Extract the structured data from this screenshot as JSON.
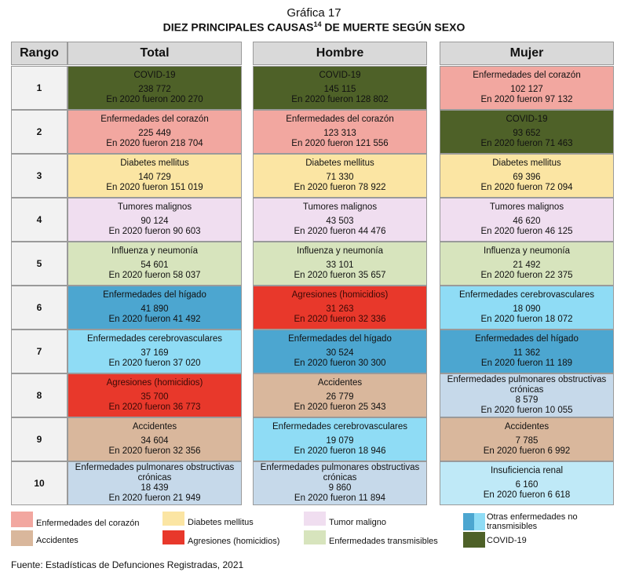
{
  "title": "Gráfica 17",
  "subtitle": "DIEZ PRINCIPALES CAUSAS",
  "subtitle_note": "14",
  "subtitle_rest": " DE MUERTE SEGÚN SEXO",
  "headers": {
    "rank": "Rango",
    "total": "Total",
    "male": "Hombre",
    "female": "Mujer"
  },
  "colors": {
    "covid": "#4e6128",
    "heart": "#f2a7a0",
    "diabetes": "#fbe5a3",
    "tumor": "#f0def0",
    "influenza": "#d7e4bd",
    "liver": "#4ca6d0",
    "cerebro": "#8fdcf5",
    "homicide": "#e8382b",
    "accident": "#d9b79c",
    "pulmonary": "#c6d9ea",
    "renal": "#bfe9f7"
  },
  "chart_data": {
    "type": "table",
    "title": "Gráfica 17",
    "subtitle": "DIEZ PRINCIPALES CAUSAS DE MUERTE SEGÚN SEXO",
    "columns": [
      "Rango",
      "Total",
      "Hombre",
      "Mujer"
    ],
    "rows": [
      {
        "rank": "1",
        "total": {
          "cause": "COVID-19",
          "value": "238 772",
          "prev": "En 2020 fueron 200 270",
          "cat": "covid"
        },
        "male": {
          "cause": "COVID-19",
          "value": "145 115",
          "prev": "En 2020 fueron 128 802",
          "cat": "covid"
        },
        "female": {
          "cause": "Enfermedades del corazón",
          "value": "102 127",
          "prev": "En 2020 fueron 97 132",
          "cat": "heart"
        }
      },
      {
        "rank": "2",
        "total": {
          "cause": "Enfermedades del corazón",
          "value": "225 449",
          "prev": "En 2020 fueron 218 704",
          "cat": "heart"
        },
        "male": {
          "cause": "Enfermedades del corazón",
          "value": "123 313",
          "prev": "En 2020 fueron 121 556",
          "cat": "heart"
        },
        "female": {
          "cause": "COVID-19",
          "value": "93 652",
          "prev": "En 2020 fueron 71 463",
          "cat": "covid"
        }
      },
      {
        "rank": "3",
        "total": {
          "cause": "Diabetes mellitus",
          "value": "140 729",
          "prev": "En 2020 fueron 151 019",
          "cat": "diabetes"
        },
        "male": {
          "cause": "Diabetes mellitus",
          "value": "71 330",
          "prev": "En 2020 fueron 78 922",
          "cat": "diabetes"
        },
        "female": {
          "cause": "Diabetes mellitus",
          "value": "69 396",
          "prev": "En 2020 fueron 72 094",
          "cat": "diabetes"
        }
      },
      {
        "rank": "4",
        "total": {
          "cause": "Tumores malignos",
          "value": "90 124",
          "prev": "En 2020 fueron 90 603",
          "cat": "tumor"
        },
        "male": {
          "cause": "Tumores malignos",
          "value": "43 503",
          "prev": "En 2020 fueron 44 476",
          "cat": "tumor"
        },
        "female": {
          "cause": "Tumores malignos",
          "value": "46 620",
          "prev": "En 2020 fueron 46 125",
          "cat": "tumor"
        }
      },
      {
        "rank": "5",
        "total": {
          "cause": "Influenza y neumonía",
          "value": "54 601",
          "prev": "En 2020 fueron 58 037",
          "cat": "influenza"
        },
        "male": {
          "cause": "Influenza y neumonía",
          "value": "33 101",
          "prev": "En 2020 fueron 35 657",
          "cat": "influenza"
        },
        "female": {
          "cause": "Influenza y neumonía",
          "value": "21 492",
          "prev": "En 2020 fueron 22 375",
          "cat": "influenza"
        }
      },
      {
        "rank": "6",
        "total": {
          "cause": "Enfermedades del hígado",
          "value": "41 890",
          "prev": "En 2020 fueron 41 492",
          "cat": "liver"
        },
        "male": {
          "cause": "Agresiones (homicidios)",
          "value": "31 263",
          "prev": "En 2020 fueron 32 336",
          "cat": "homicide"
        },
        "female": {
          "cause": "Enfermedades cerebrovasculares",
          "value": "18 090",
          "prev": "En 2020 fueron 18 072",
          "cat": "cerebro"
        }
      },
      {
        "rank": "7",
        "total": {
          "cause": "Enfermedades cerebrovasculares",
          "value": "37 169",
          "prev": "En 2020 fueron 37 020",
          "cat": "cerebro"
        },
        "male": {
          "cause": "Enfermedades del hígado",
          "value": "30 524",
          "prev": "En 2020 fueron 30 300",
          "cat": "liver"
        },
        "female": {
          "cause": "Enfermedades del hígado",
          "value": "11 362",
          "prev": "En 2020 fueron 11 189",
          "cat": "liver"
        }
      },
      {
        "rank": "8",
        "total": {
          "cause": "Agresiones (homicidios)",
          "value": "35 700",
          "prev": "En 2020 fueron 36 773",
          "cat": "homicide"
        },
        "male": {
          "cause": "Accidentes",
          "value": "26 779",
          "prev": "En 2020 fueron 25 343",
          "cat": "accident"
        },
        "female": {
          "cause": "Enfermedades pulmonares obstructivas crónicas",
          "value": "8 579",
          "prev": "En 2020 fueron 10 055",
          "cat": "pulmonary"
        }
      },
      {
        "rank": "9",
        "total": {
          "cause": "Accidentes",
          "value": "34 604",
          "prev": "En 2020 fueron 32 356",
          "cat": "accident"
        },
        "male": {
          "cause": "Enfermedades cerebrovasculares",
          "value": "19 079",
          "prev": "En 2020 fueron 18 946",
          "cat": "cerebro"
        },
        "female": {
          "cause": "Accidentes",
          "value": "7 785",
          "prev": "En 2020 fueron 6 992",
          "cat": "accident"
        }
      },
      {
        "rank": "10",
        "total": {
          "cause": "Enfermedades pulmonares obstructivas crónicas",
          "value": "18 439",
          "prev": "En 2020 fueron 21 949",
          "cat": "pulmonary"
        },
        "male": {
          "cause": "Enfermedades pulmonares obstructivas crónicas",
          "value": "9 860",
          "prev": "En 2020 fueron 11 894",
          "cat": "pulmonary"
        },
        "female": {
          "cause": "Insuficiencia renal",
          "value": "6 160",
          "prev": "En 2020 fueron 6 618",
          "cat": "renal"
        }
      }
    ]
  },
  "legend": [
    {
      "label": "Enfermedades del corazón",
      "cat": "heart"
    },
    {
      "label": "Diabetes mellitus",
      "cat": "diabetes"
    },
    {
      "label": "Tumor maligno",
      "cat": "tumor"
    },
    {
      "label": "Otras enfermedades no transmisibles",
      "cat": "other"
    },
    {
      "label": "Accidentes",
      "cat": "accident"
    },
    {
      "label": "Agresiones (homicidios)",
      "cat": "homicide"
    },
    {
      "label": "Enfermedades transmisibles",
      "cat": "influenza"
    },
    {
      "label": "COVID-19",
      "cat": "covid"
    }
  ],
  "source": "Fuente: Estadísticas de Defunciones Registradas, 2021"
}
